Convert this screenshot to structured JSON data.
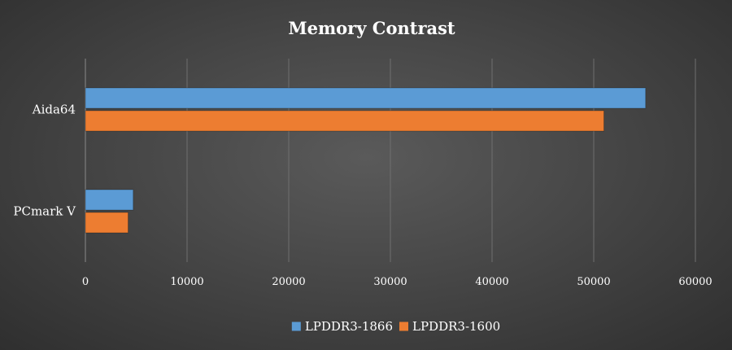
{
  "chart_data": {
    "type": "bar",
    "orientation": "horizontal",
    "title": "Memory Contrast",
    "categories": [
      "Aida64",
      "PCmark V"
    ],
    "series": [
      {
        "name": "LPDDR3-1866",
        "values": [
          55100,
          4700
        ],
        "color": "#5b9bd5"
      },
      {
        "name": "LPDDR3-1600",
        "values": [
          51000,
          4200
        ],
        "color": "#ed7d31"
      }
    ],
    "xlim": [
      0,
      60000
    ],
    "xticks": [
      0,
      10000,
      20000,
      30000,
      40000,
      50000,
      60000
    ],
    "xtick_labels": [
      "0",
      "10000",
      "20000",
      "30000",
      "40000",
      "50000",
      "60000"
    ],
    "grid": "vertical",
    "legend": "bottom",
    "background": "#474747"
  }
}
